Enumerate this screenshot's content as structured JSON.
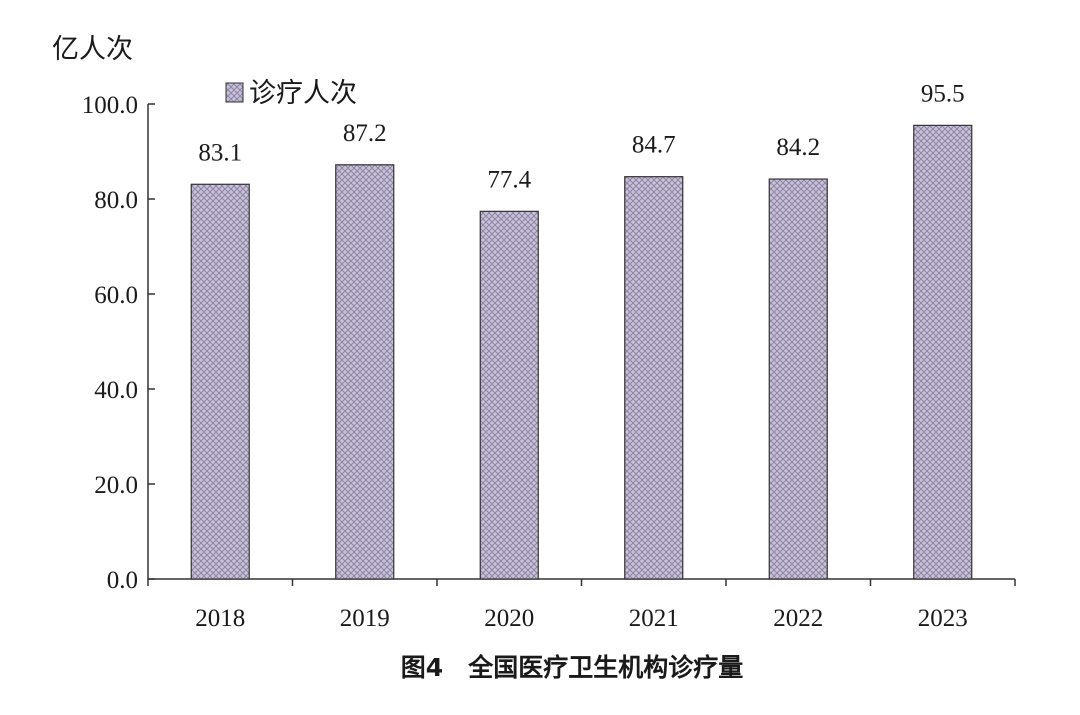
{
  "chart_data": {
    "type": "bar",
    "title": "图4　全国医疗卫生机构诊疗量",
    "ylabel": "亿人次",
    "xlabel": "",
    "categories": [
      "2018",
      "2019",
      "2020",
      "2021",
      "2022",
      "2023"
    ],
    "series": [
      {
        "name": "诊疗人次",
        "values": [
          83.1,
          87.2,
          77.4,
          84.7,
          84.2,
          95.5
        ],
        "value_labels": [
          "83.1",
          "87.2",
          "77.4",
          "84.7",
          "84.2",
          "95.5"
        ],
        "color": "#c9c1d6"
      }
    ],
    "ylim": [
      0,
      100
    ],
    "yticks": [
      0,
      20,
      40,
      60,
      80,
      100
    ],
    "ytick_labels": [
      "0.0",
      "20.0",
      "40.0",
      "60.0",
      "80.0",
      "100.0"
    ],
    "grid": false,
    "legend_position": "top-left",
    "bar_pattern": "crosshatch",
    "hatch_color": "#8f84a6",
    "axis_color": "#333333"
  }
}
